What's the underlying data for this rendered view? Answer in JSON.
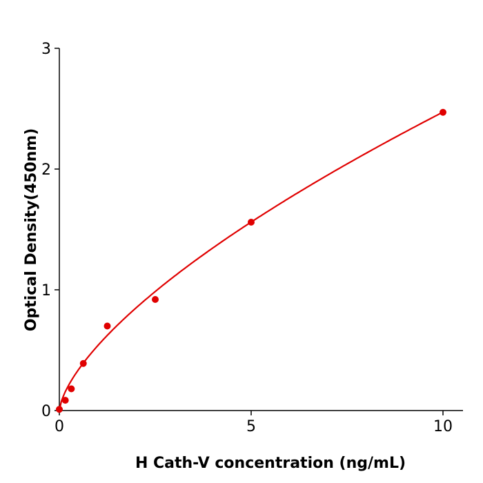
{
  "chart_data": {
    "type": "scatter",
    "xlabel": "H  Cath-V concentration (ng/mL)",
    "ylabel": "Optical Density(450nm)",
    "xlim": [
      0,
      10.5
    ],
    "ylim": [
      0,
      3
    ],
    "x_ticks": [
      "0",
      "5",
      "10"
    ],
    "y_ticks": [
      "0",
      "1",
      "2",
      "3"
    ],
    "grid": false,
    "color": "#e00000",
    "series": [
      {
        "x": [
          0,
          0.156,
          0.3125,
          0.625,
          1.25,
          2.5,
          5,
          10
        ],
        "y": [
          0.01,
          0.085,
          0.18,
          0.39,
          0.7,
          0.92,
          1.56,
          2.47
        ]
      }
    ],
    "fit_curve": true
  }
}
